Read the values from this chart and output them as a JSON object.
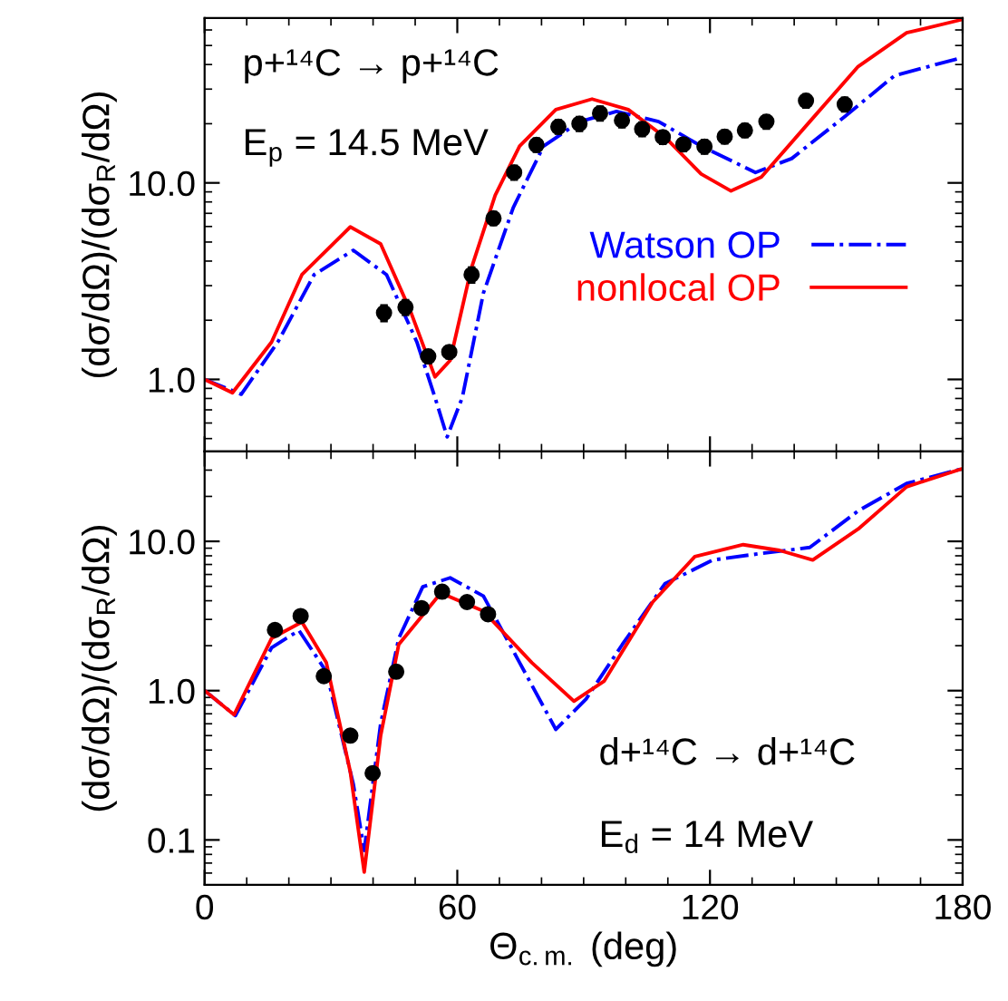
{
  "chart_data": [
    {
      "type": "line",
      "xlabel": null,
      "ylabel": "(dσ/dΩ)/(dσ$_{R}$/dΩ)",
      "log": "y",
      "legend": "right",
      "tick_labels": "y",
      "xlim": [
        0,
        180
      ],
      "xticks": [
        0,
        60,
        120,
        180
      ],
      "ylim": [
        0.43,
        69
      ],
      "yticks": [
        {
          "value": 1,
          "label": "1.0"
        },
        {
          "value": 10,
          "label": "10.0"
        }
      ],
      "annotations": [
        "p+¹⁴C → p+¹⁴C",
        "E$_{p}$ = 14.5 MeV"
      ],
      "series": [
        {
          "name": "Watson OP",
          "color": "#0000ff",
          "line_style": "dashdot",
          "x": [
            0,
            8.7,
            17.4,
            26.0,
            35.3,
            43.2,
            50.4,
            54.7,
            57.6,
            61.2,
            66.2,
            73.3,
            80.5,
            89.1,
            97.8,
            107.8,
            117.9,
            130.8,
            139.4,
            152.3,
            163.8,
            180
          ],
          "values": [
            1.0,
            0.84,
            1.55,
            3.41,
            4.54,
            3.41,
            1.55,
            0.81,
            0.51,
            0.81,
            2.75,
            7.5,
            15.4,
            20.5,
            23.1,
            20.5,
            15.4,
            11.3,
            13.3,
            22.0,
            35.1,
            43.5
          ]
        },
        {
          "name": "nonlocal OP",
          "color": "#ff0000",
          "line_style": "solid",
          "x": [
            0,
            6.6,
            15.9,
            23.1,
            34.6,
            41.8,
            48.9,
            54.7,
            58.3,
            63.3,
            69.0,
            74.8,
            83.4,
            92.0,
            100.6,
            109.3,
            117.9,
            125.0,
            132.2,
            143.7,
            155.2,
            166.7,
            180
          ],
          "values": [
            1.0,
            0.855,
            1.55,
            3.41,
            5.97,
            4.89,
            2.22,
            1.03,
            1.25,
            3.66,
            8.65,
            15.4,
            23.6,
            26.7,
            23.6,
            17.1,
            11.1,
            9.1,
            10.7,
            20.5,
            39.1,
            58.0,
            67.9
          ]
        },
        {
          "type": "scatter",
          "color": "#000000",
          "marker": "circle",
          "x": [
            42.6,
            47.7,
            53.1,
            58.1,
            63.4,
            68.6,
            73.5,
            78.8,
            84.0,
            89.0,
            93.9,
            99.1,
            103.9,
            108.8,
            113.7,
            118.7,
            123.5,
            128.3,
            133.4,
            142.8,
            152.0
          ],
          "values": [
            2.18,
            2.33,
            1.31,
            1.38,
            3.41,
            6.6,
            11.3,
            15.6,
            19.3,
            20.0,
            22.6,
            20.8,
            18.8,
            17.1,
            15.7,
            15.3,
            17.2,
            18.5,
            20.5,
            26.2,
            25.1
          ],
          "errors": [
            0.2,
            0.2,
            0.1,
            0.1,
            0.3,
            0.5,
            0.9,
            1.2,
            1.5,
            1.6,
            1.8,
            1.6,
            1.5,
            1.3,
            1.2,
            1.2,
            1.3,
            1.4,
            1.6,
            2.0,
            2.0
          ]
        }
      ]
    },
    {
      "type": "line",
      "xlabel": "Θ$_{c.m.}$ (deg)",
      "ylabel": "(dσ/dΩ)/(dσ$_{R}$/dΩ)",
      "log": "y",
      "legend": false,
      "xlim": [
        0,
        180
      ],
      "xticks": [
        0,
        60,
        120,
        180
      ],
      "ylim": [
        0.05,
        40
      ],
      "yticks": [
        {
          "value": 0.1,
          "label": "0.1"
        },
        {
          "value": 1,
          "label": "1.0"
        },
        {
          "value": 10,
          "label": "10.0"
        }
      ],
      "annotations": [
        "d+¹⁴C → d+¹⁴C",
        "E$_{d}$ = 14 MeV"
      ],
      "series": [
        {
          "color": "#0000ff",
          "line_style": "dashdot",
          "x": [
            0,
            7.3,
            15.9,
            22.4,
            28.9,
            35.3,
            37.9,
            41.8,
            46.1,
            51.8,
            58.3,
            66.2,
            74.8,
            83.4,
            90.6,
            99.2,
            109.3,
            120.7,
            132.2,
            143.7,
            155.2,
            166.7,
            180
          ],
          "values": [
            1.0,
            0.68,
            1.94,
            2.53,
            1.34,
            0.237,
            0.085,
            0.6,
            2.24,
            4.96,
            5.7,
            4.3,
            1.54,
            0.55,
            0.88,
            2.04,
            5.2,
            7.5,
            8.3,
            9.1,
            16.0,
            24.4,
            30.7
          ]
        },
        {
          "color": "#ff0000",
          "line_style": "solid",
          "x": [
            0,
            7.0,
            15.9,
            23.1,
            28.9,
            34.6,
            37.9,
            41.8,
            46.1,
            56.1,
            66.2,
            77.7,
            87.7,
            94.9,
            106.4,
            116.4,
            127.9,
            136.5,
            144.4,
            155.2,
            166.7,
            180
          ],
          "values": [
            1.0,
            0.69,
            2.24,
            2.88,
            1.54,
            0.285,
            0.061,
            0.5,
            2.04,
            4.51,
            3.41,
            1.54,
            0.85,
            1.16,
            3.92,
            7.9,
            9.5,
            8.7,
            7.5,
            12.1,
            23.2,
            30.7
          ]
        },
        {
          "type": "scatter",
          "color": "#000000",
          "marker": "circle",
          "x": [
            16.7,
            22.8,
            28.3,
            34.6,
            39.9,
            45.5,
            51.5,
            56.4,
            62.3,
            67.3
          ],
          "values": [
            2.55,
            3.16,
            1.25,
            0.5,
            0.28,
            1.34,
            3.57,
            4.6,
            3.92,
            3.25
          ]
        }
      ]
    }
  ]
}
